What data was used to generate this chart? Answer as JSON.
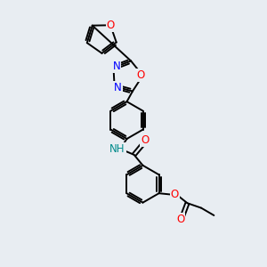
{
  "background_color": "#e8edf2",
  "bond_color": "#000000",
  "O_color": "#ff0000",
  "N_color": "#0000ff",
  "NH_color": "#008b8b",
  "line_width": 1.4,
  "font_size": 8.5,
  "figsize": [
    3.0,
    3.0
  ],
  "dpi": 100,
  "xlim": [
    0,
    10
  ],
  "ylim": [
    0,
    10
  ]
}
